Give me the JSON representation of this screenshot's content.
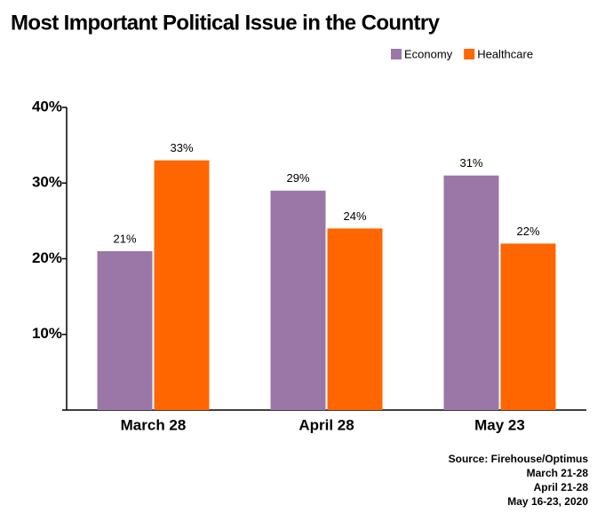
{
  "chart_data": {
    "type": "bar",
    "title": "Most Important Political Issue in the Country",
    "categories": [
      "March 28",
      "April 28",
      "May 23"
    ],
    "series": [
      {
        "name": "Economy",
        "color": "#9b77a8",
        "values": [
          21,
          29,
          31
        ],
        "value_labels": [
          "21%",
          "29%",
          "31%"
        ]
      },
      {
        "name": "Healthcare",
        "color": "#ff6600",
        "values": [
          33,
          24,
          22
        ],
        "value_labels": [
          "33%",
          "24%",
          "22%"
        ]
      }
    ],
    "ylim": [
      0,
      40
    ],
    "yticks": [
      {
        "value": 10,
        "label": "10%"
      },
      {
        "value": 20,
        "label": "20%"
      },
      {
        "value": 30,
        "label": "30%"
      },
      {
        "value": 40,
        "label": "40%"
      }
    ],
    "grid": false,
    "legend": "top-right",
    "source": [
      "Source: Firehouse/Optimus",
      "March 21-28",
      "April 21-28",
      "May 16-23, 2020"
    ]
  }
}
